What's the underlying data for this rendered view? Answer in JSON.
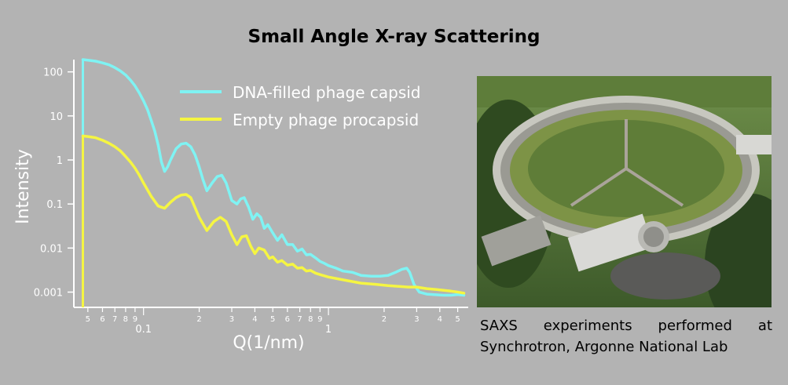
{
  "title": "Small Angle X-ray Scattering",
  "chart_data": {
    "type": "line",
    "xlabel": "Q(1/nm)",
    "ylabel": "Intensity",
    "xscale": "log",
    "yscale": "log",
    "xlim": [
      0.042,
      5.7
    ],
    "ylim": [
      0.00045,
      190
    ],
    "y_ticks": [
      {
        "v": 100,
        "label": "100"
      },
      {
        "v": 10,
        "label": "10"
      },
      {
        "v": 1,
        "label": "1"
      },
      {
        "v": 0.1,
        "label": "0.1"
      },
      {
        "v": 0.01,
        "label": "0.01"
      },
      {
        "v": 0.001,
        "label": "0.001"
      }
    ],
    "x_ticks": [
      {
        "v": 0.05,
        "label": "5"
      },
      {
        "v": 0.06,
        "label": "6"
      },
      {
        "v": 0.07,
        "label": "7"
      },
      {
        "v": 0.08,
        "label": "8"
      },
      {
        "v": 0.09,
        "label": "9"
      },
      {
        "v": 0.1,
        "label": "0.1",
        "major": true
      },
      {
        "v": 0.2,
        "label": "2"
      },
      {
        "v": 0.3,
        "label": "3"
      },
      {
        "v": 0.4,
        "label": "4"
      },
      {
        "v": 0.5,
        "label": "5"
      },
      {
        "v": 0.6,
        "label": "6"
      },
      {
        "v": 0.7,
        "label": "7"
      },
      {
        "v": 0.8,
        "label": "8"
      },
      {
        "v": 0.9,
        "label": "9"
      },
      {
        "v": 1,
        "label": "1",
        "major": true
      },
      {
        "v": 2,
        "label": "2"
      },
      {
        "v": 3,
        "label": "3"
      },
      {
        "v": 4,
        "label": "4"
      },
      {
        "v": 5,
        "label": "5"
      }
    ],
    "legend_position": "top-right",
    "series": [
      {
        "name": "DNA-filled phage capsid",
        "color": "#7ff3f3",
        "x": [
          0.047,
          0.05,
          0.055,
          0.06,
          0.065,
          0.07,
          0.075,
          0.08,
          0.085,
          0.09,
          0.095,
          0.1,
          0.105,
          0.11,
          0.115,
          0.12,
          0.125,
          0.13,
          0.135,
          0.14,
          0.15,
          0.16,
          0.17,
          0.18,
          0.19,
          0.2,
          0.21,
          0.22,
          0.235,
          0.25,
          0.265,
          0.28,
          0.3,
          0.32,
          0.335,
          0.35,
          0.37,
          0.39,
          0.41,
          0.43,
          0.45,
          0.47,
          0.5,
          0.53,
          0.56,
          0.6,
          0.64,
          0.68,
          0.72,
          0.76,
          0.8,
          0.85,
          0.9,
          0.95,
          1.0,
          1.1,
          1.2,
          1.35,
          1.5,
          1.7,
          1.9,
          2.1,
          2.3,
          2.5,
          2.65,
          2.75,
          2.9,
          3.1,
          3.4,
          3.8,
          4.2,
          4.6,
          5.0,
          5.4
        ],
        "y": [
          190,
          185,
          175,
          160,
          145,
          125,
          105,
          85,
          65,
          48,
          33,
          22,
          14,
          8,
          4.5,
          2.2,
          0.9,
          0.55,
          0.7,
          1.0,
          1.8,
          2.3,
          2.4,
          2.0,
          1.3,
          0.7,
          0.35,
          0.2,
          0.3,
          0.42,
          0.45,
          0.3,
          0.12,
          0.1,
          0.13,
          0.14,
          0.085,
          0.045,
          0.06,
          0.05,
          0.028,
          0.034,
          0.022,
          0.015,
          0.02,
          0.012,
          0.012,
          0.0085,
          0.0095,
          0.007,
          0.0072,
          0.006,
          0.005,
          0.0045,
          0.004,
          0.0035,
          0.003,
          0.0028,
          0.0024,
          0.0023,
          0.0023,
          0.0024,
          0.0028,
          0.0033,
          0.0035,
          0.0028,
          0.0015,
          0.001,
          0.0009,
          0.00087,
          0.00085,
          0.00085,
          0.00088,
          0.00085
        ]
      },
      {
        "name": "Empty phage procapsid",
        "color": "#f5f542",
        "x": [
          0.047,
          0.05,
          0.055,
          0.06,
          0.065,
          0.07,
          0.075,
          0.08,
          0.085,
          0.09,
          0.095,
          0.1,
          0.11,
          0.12,
          0.13,
          0.14,
          0.15,
          0.16,
          0.17,
          0.18,
          0.2,
          0.22,
          0.24,
          0.26,
          0.28,
          0.3,
          0.32,
          0.34,
          0.36,
          0.38,
          0.4,
          0.42,
          0.45,
          0.48,
          0.5,
          0.53,
          0.56,
          0.6,
          0.64,
          0.68,
          0.72,
          0.76,
          0.8,
          0.85,
          0.9,
          1.0,
          1.2,
          1.5,
          1.8,
          2.1,
          2.4,
          2.7,
          3.0,
          3.4,
          3.8,
          4.2,
          4.6,
          5.0,
          5.4
        ],
        "y": [
          3.5,
          3.4,
          3.2,
          2.8,
          2.4,
          2.0,
          1.6,
          1.2,
          0.9,
          0.65,
          0.45,
          0.3,
          0.15,
          0.09,
          0.08,
          0.11,
          0.14,
          0.16,
          0.165,
          0.14,
          0.05,
          0.025,
          0.04,
          0.05,
          0.04,
          0.02,
          0.012,
          0.018,
          0.019,
          0.011,
          0.0075,
          0.01,
          0.009,
          0.0058,
          0.0063,
          0.0048,
          0.0052,
          0.0041,
          0.0043,
          0.0035,
          0.0036,
          0.003,
          0.0031,
          0.0027,
          0.0025,
          0.0022,
          0.0019,
          0.0016,
          0.0015,
          0.0014,
          0.00135,
          0.0013,
          0.0013,
          0.0012,
          0.00115,
          0.0011,
          0.00105,
          0.001,
          0.00095
        ]
      }
    ]
  },
  "photo": {
    "name": "Aerial view of the Advanced Photon Source synchrotron ring"
  },
  "caption": {
    "line1": "SAXS experiments performed at",
    "line2": "Synchrotron, Argonne National Lab"
  }
}
